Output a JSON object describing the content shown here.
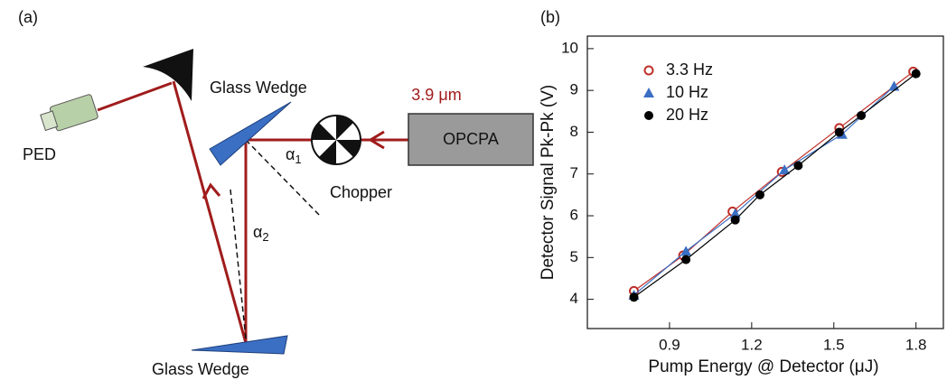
{
  "diagram": {
    "panel_label": "(a)",
    "wedge_top_label": "Glass Wedge",
    "wedge_bottom_label": "Glass Wedge",
    "wavelength": "3.9 μm",
    "source": "OPCPA",
    "chopper": "Chopper",
    "detector": "PED",
    "alpha_1": {
      "symbol": "α",
      "subscript": "1"
    },
    "alpha_2": {
      "symbol": "α",
      "subscript": "2"
    }
  },
  "chart_data": {
    "type": "scatter",
    "panel_label": "(b)",
    "x_label": "Pump Energy @ Detector (μJ)",
    "y_label": "Detector Signal Pk-Pk (V)",
    "xlim": [
      0.6,
      1.9
    ],
    "xticks": [
      0.9,
      1.2,
      1.5,
      1.8
    ],
    "ylim": [
      3.3,
      10.3
    ],
    "yticks": [
      4,
      5,
      6,
      7,
      8,
      9,
      10
    ],
    "legend": "upper left",
    "series": [
      {
        "name": "3.3 Hz",
        "color": "#c0302a",
        "marker": "open-circle",
        "x": [
          0.77,
          0.95,
          1.13,
          1.31,
          1.52,
          1.79
        ],
        "values": [
          4.2,
          5.05,
          6.1,
          7.05,
          8.1,
          9.45
        ]
      },
      {
        "name": "10 Hz",
        "color": "#3a6fc4",
        "marker": "triangle",
        "x": [
          0.77,
          0.96,
          1.14,
          1.32,
          1.53,
          1.72
        ],
        "values": [
          4.1,
          5.15,
          6.05,
          7.1,
          7.95,
          9.1
        ]
      },
      {
        "name": "20 Hz",
        "color": "#000000",
        "marker": "circle",
        "x": [
          0.77,
          0.96,
          1.14,
          1.23,
          1.37,
          1.52,
          1.6,
          1.8
        ],
        "values": [
          4.05,
          4.95,
          5.9,
          6.5,
          7.2,
          8.0,
          8.4,
          9.4
        ]
      }
    ]
  }
}
